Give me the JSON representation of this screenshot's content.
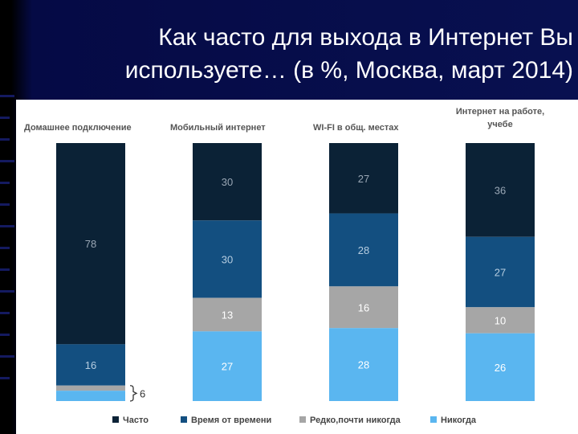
{
  "title": {
    "line1": "Как часто для выхода в Интернет Вы",
    "line2": "используете… (в %, Москва, март 2014)"
  },
  "colors": {
    "background": "#05083a",
    "title_text": "#ffffff",
    "often": "#0b2236",
    "sometimes": "#134f80",
    "rarely": "#a6a6a6",
    "never": "#5ab6f0"
  },
  "chart_data": {
    "type": "bar",
    "stacked": true,
    "categories": [
      "Домашнее подключение",
      "Мобильный интернет",
      "WI-FI в общ. местах",
      "Интернет на работе, учебе"
    ],
    "series": [
      {
        "name": "Часто",
        "values": [
          78,
          30,
          27,
          36
        ]
      },
      {
        "name": "Время от времени",
        "values": [
          16,
          30,
          28,
          27
        ]
      },
      {
        "name": "Редко,почти никогда",
        "values": [
          2,
          13,
          16,
          10
        ]
      },
      {
        "name": "Никогда",
        "values": [
          4,
          27,
          28,
          26
        ]
      }
    ],
    "labels": [
      [
        "78",
        "16",
        "",
        ""
      ],
      [
        "30",
        "30",
        "13",
        "27"
      ],
      [
        "27",
        "28",
        "16",
        "28"
      ],
      [
        "36",
        "27",
        "10",
        "26"
      ]
    ],
    "annotation": {
      "category": 0,
      "text": "6"
    },
    "legend_position": "bottom",
    "grid": false
  }
}
